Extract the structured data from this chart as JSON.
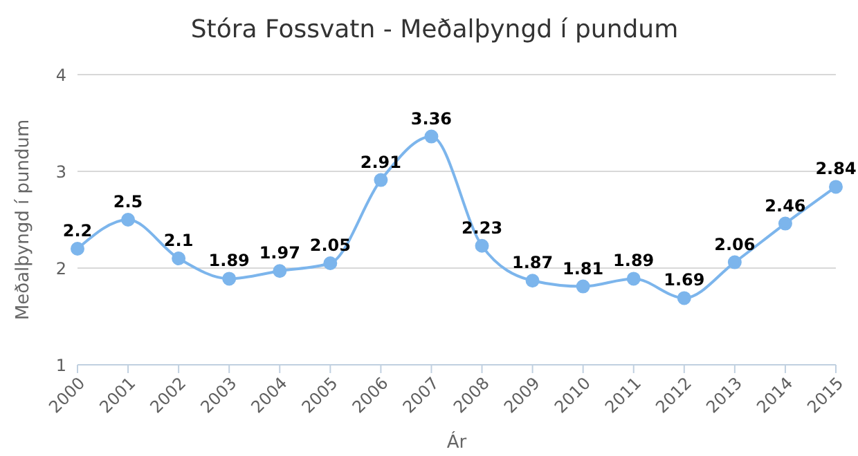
{
  "chart_data": {
    "type": "line",
    "title": "Stóra Fossvatn - Meðalþyngd í pundum",
    "xlabel": "Ár",
    "ylabel": "Meðalþyngd í pundum",
    "categories": [
      "2000",
      "2001",
      "2002",
      "2003",
      "2004",
      "2005",
      "2006",
      "2007",
      "2008",
      "2009",
      "2010",
      "2011",
      "2012",
      "2013",
      "2014",
      "2015"
    ],
    "series": [
      {
        "color": "#7cb5ec",
        "values": [
          2.2,
          2.5,
          2.1,
          1.89,
          1.97,
          2.05,
          2.91,
          3.36,
          2.23,
          1.87,
          1.81,
          1.89,
          1.69,
          2.06,
          2.46,
          2.84
        ]
      }
    ],
    "ylim": [
      1,
      4
    ],
    "yticks": [
      1,
      2,
      3,
      4
    ],
    "grid": "y",
    "marker": "circle",
    "line_style": "solid",
    "data_labels": true
  }
}
